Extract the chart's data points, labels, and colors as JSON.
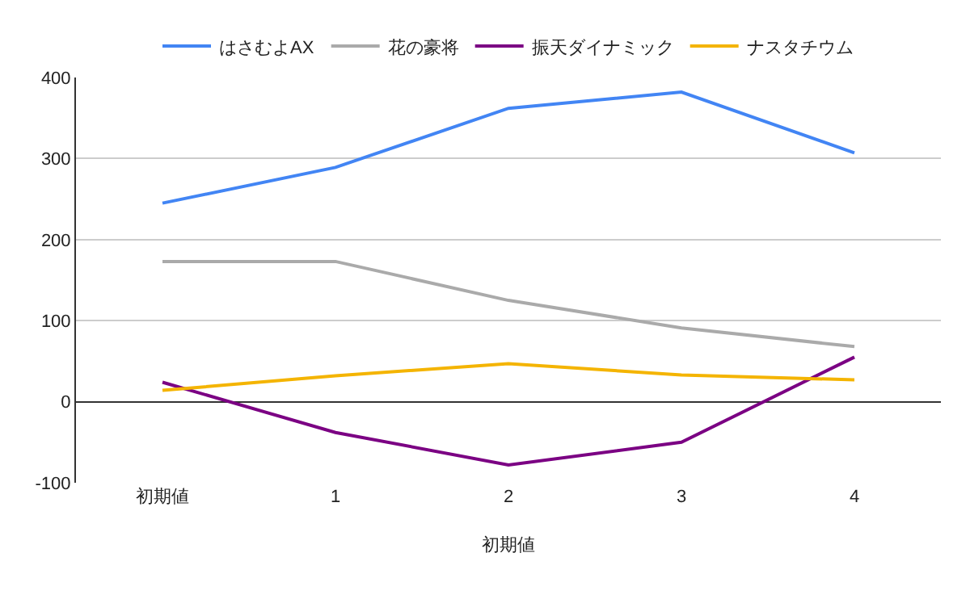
{
  "chart_data": {
    "type": "line",
    "xlabel": "初期値",
    "categories": [
      "初期値",
      "1",
      "2",
      "3",
      "4"
    ],
    "series": [
      {
        "name": "はさむよAX",
        "color": "#4285f4",
        "values": [
          245,
          289,
          362,
          382,
          307
        ]
      },
      {
        "name": "花の豪将",
        "color": "#aaaaaa",
        "values": [
          173,
          173,
          125,
          91,
          68
        ]
      },
      {
        "name": "振天ダイナミック",
        "color": "#7b0083",
        "values": [
          24,
          -38,
          -78,
          -50,
          55
        ]
      },
      {
        "name": "ナスタチウム",
        "color": "#f4b400",
        "values": [
          14,
          32,
          47,
          33,
          27
        ]
      }
    ],
    "ylim": [
      -100,
      400
    ],
    "yticks": [
      -100,
      0,
      100,
      200,
      300,
      400
    ],
    "grid": "y",
    "legend": "top",
    "marker": "none",
    "line_style": "solid"
  }
}
